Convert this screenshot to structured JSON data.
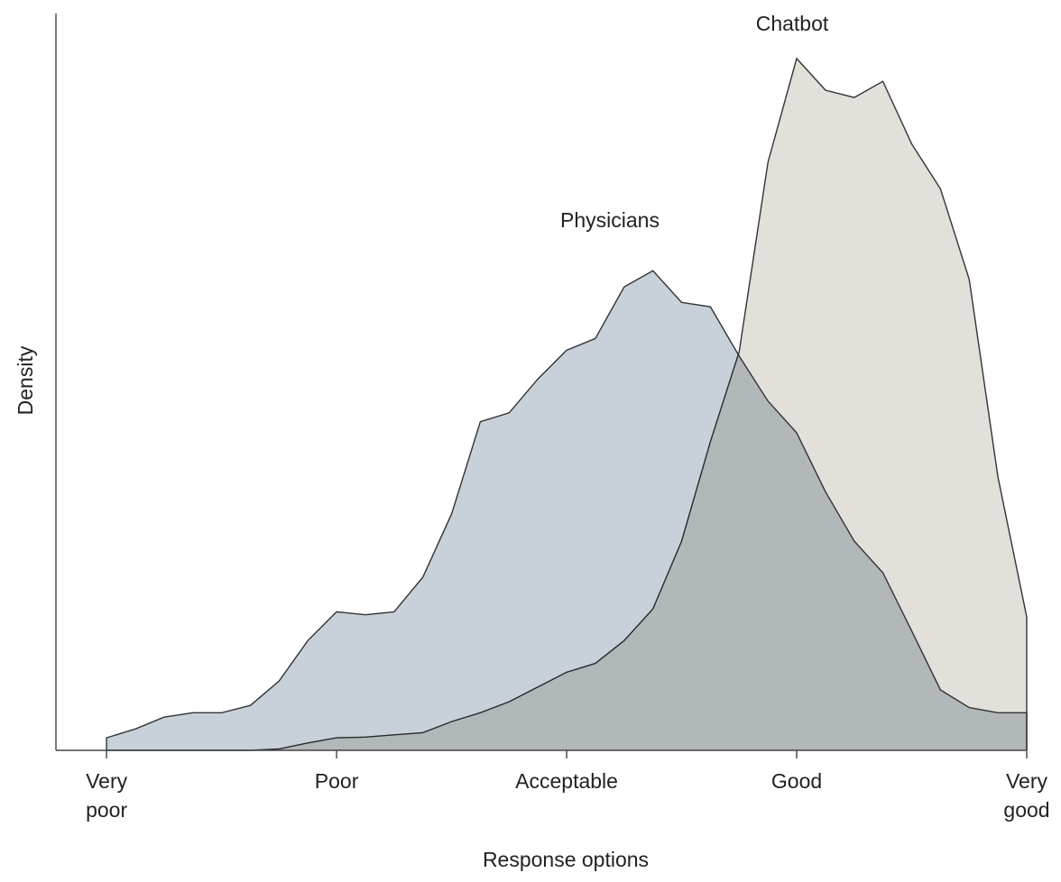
{
  "chart_data": {
    "type": "area",
    "xlabel": "Response options",
    "ylabel": "Density",
    "xlim": [
      0.78,
      5
    ],
    "ylim": [
      0,
      100
    ],
    "xticks": [
      {
        "value": 1,
        "label": "Very poor"
      },
      {
        "value": 2,
        "label": "Poor"
      },
      {
        "value": 3,
        "label": "Acceptable"
      },
      {
        "value": 4,
        "label": "Good"
      },
      {
        "value": 5,
        "label": "Very good"
      }
    ],
    "x": [
      1,
      1.125,
      1.25,
      1.375,
      1.5,
      1.625,
      1.75,
      1.875,
      2,
      2.125,
      2.25,
      2.375,
      2.5,
      2.625,
      2.75,
      2.875,
      3,
      3.125,
      3.25,
      3.375,
      3.5,
      3.625,
      3.75,
      3.875,
      4,
      4.125,
      4.25,
      4.375,
      4.5,
      4.625,
      4.75,
      4.875,
      5
    ],
    "series": [
      {
        "name": "Chatbot",
        "color": "#e3e0db",
        "values": [
          0,
          0,
          0,
          0,
          0,
          0,
          0.2,
          1.0,
          1.7,
          1.8,
          2.1,
          2.4,
          3.9,
          5.1,
          6.6,
          8.6,
          10.6,
          11.8,
          14.9,
          19.2,
          28.4,
          41.9,
          54.1,
          79.8,
          93.9,
          89.6,
          88.6,
          90.8,
          82.3,
          76.2,
          63.9,
          37.1,
          18.1
        ]
      },
      {
        "name": "Physicians",
        "color": "#c8d1d9",
        "values": [
          1.7,
          2.9,
          4.5,
          5.1,
          5.1,
          6.1,
          9.4,
          14.9,
          18.8,
          18.4,
          18.8,
          23.5,
          32.1,
          44.6,
          45.8,
          50.4,
          54.3,
          55.9,
          62.9,
          65.1,
          60.8,
          60.2,
          53.5,
          47.4,
          43.1,
          35.1,
          28.4,
          24.1,
          16.2,
          8.2,
          5.8,
          5.1,
          5.1
        ]
      }
    ]
  }
}
